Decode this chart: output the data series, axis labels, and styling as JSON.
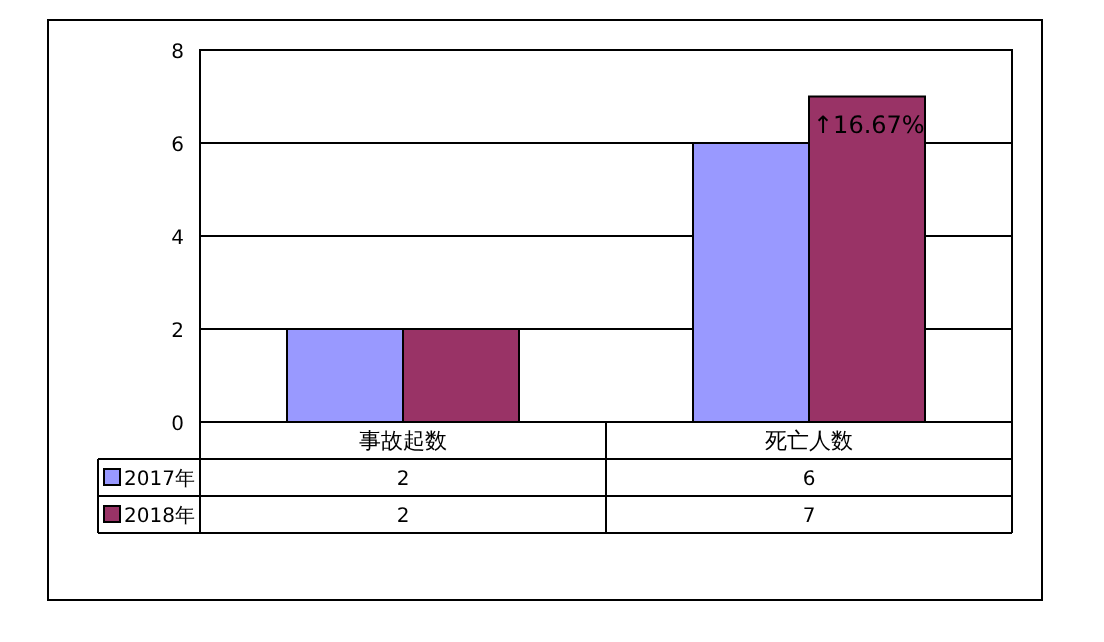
{
  "chart_data": {
    "type": "bar",
    "categories": [
      "事故起数",
      "死亡人数"
    ],
    "series": [
      {
        "name": "2017年",
        "color": "#9999ff",
        "values": [
          2,
          6
        ]
      },
      {
        "name": "2018年",
        "color": "#993366",
        "values": [
          2,
          7
        ]
      }
    ],
    "ylim": [
      0,
      8
    ],
    "yticks": [
      0,
      2,
      4,
      6,
      8
    ],
    "grid": "y",
    "legend": "bottom",
    "data_labels": true,
    "annotations": [
      {
        "text": "↑16.67%",
        "x": "死亡人数",
        "y": 7
      }
    ]
  }
}
